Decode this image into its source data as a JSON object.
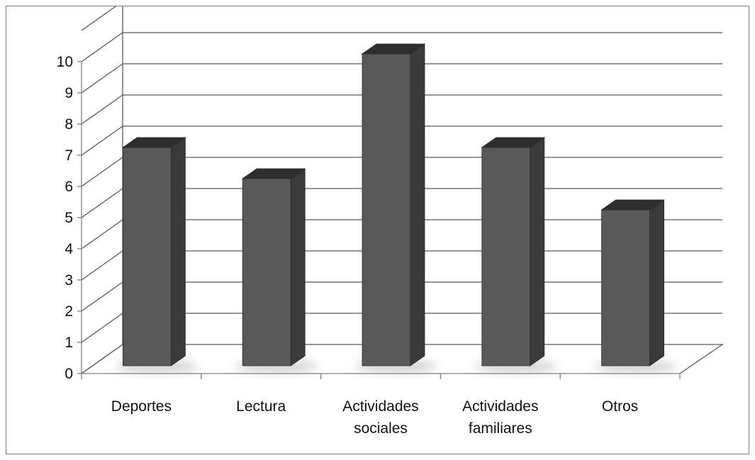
{
  "chart_data": {
    "type": "bar",
    "style": "3d-column",
    "categories": [
      [
        "Deportes"
      ],
      [
        "Lectura"
      ],
      [
        "Actividades",
        "sociales"
      ],
      [
        "Actividades",
        "familiares"
      ],
      [
        "Otros"
      ]
    ],
    "values": [
      7,
      6,
      10,
      7,
      5
    ],
    "y_ticks": [
      "0",
      "1",
      "2",
      "3",
      "4",
      "5",
      "6",
      "7",
      "8",
      "9",
      "10"
    ],
    "ylim": [
      0,
      11
    ],
    "title": "",
    "xlabel": "",
    "ylabel": "",
    "grid": true,
    "legend": "none",
    "colors": {
      "bar_front": "#595959",
      "bar_side": "#3a3a3a",
      "bar_top": "#2e2e2e",
      "grid": "#5a5a5a",
      "floor_shadow": "#e6e6e6"
    }
  }
}
